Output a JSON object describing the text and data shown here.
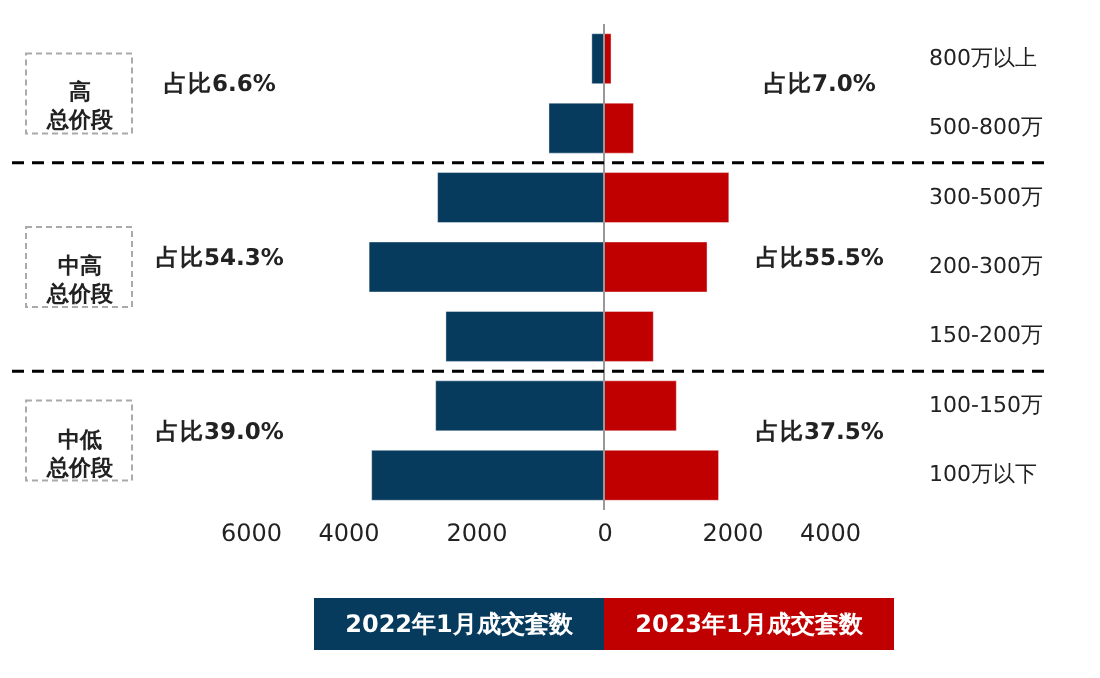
{
  "chart_data": {
    "type": "bar",
    "orientation": "horizontal",
    "categories": [
      "800万以上",
      "500-800万",
      "300-500万",
      "200-300万",
      "150-200万",
      "100-150万",
      "100万以下"
    ],
    "series": [
      {
        "name": "2022年1月成交套数",
        "color": "#073b5e",
        "values": [
          -190,
          -860,
          -2600,
          -3670,
          -2470,
          -2630,
          -3630
        ]
      },
      {
        "name": "2023年1月成交套数",
        "color": "#c00000",
        "values": [
          110,
          460,
          1950,
          1610,
          770,
          1130,
          1790
        ]
      }
    ],
    "xlim": [
      -6000,
      4000
    ],
    "xticks": [
      {
        "value": -6000,
        "label": "6000"
      },
      {
        "value": -4000,
        "label": "4000"
      },
      {
        "value": -2000,
        "label": "2000"
      },
      0,
      2000,
      4000
    ],
    "stacked": true,
    "ref_lines": [
      {
        "axis": "x",
        "value": 0,
        "color": "#999999"
      }
    ],
    "annotations": [
      "高总价段",
      "占比6.6%",
      "占比7.0%",
      "中高总价段",
      "占比54.3%",
      "占比55.5%",
      "中低总价段",
      "占比39.0%",
      "占比37.5%"
    ],
    "legend": "bottom",
    "grid": false
  }
}
